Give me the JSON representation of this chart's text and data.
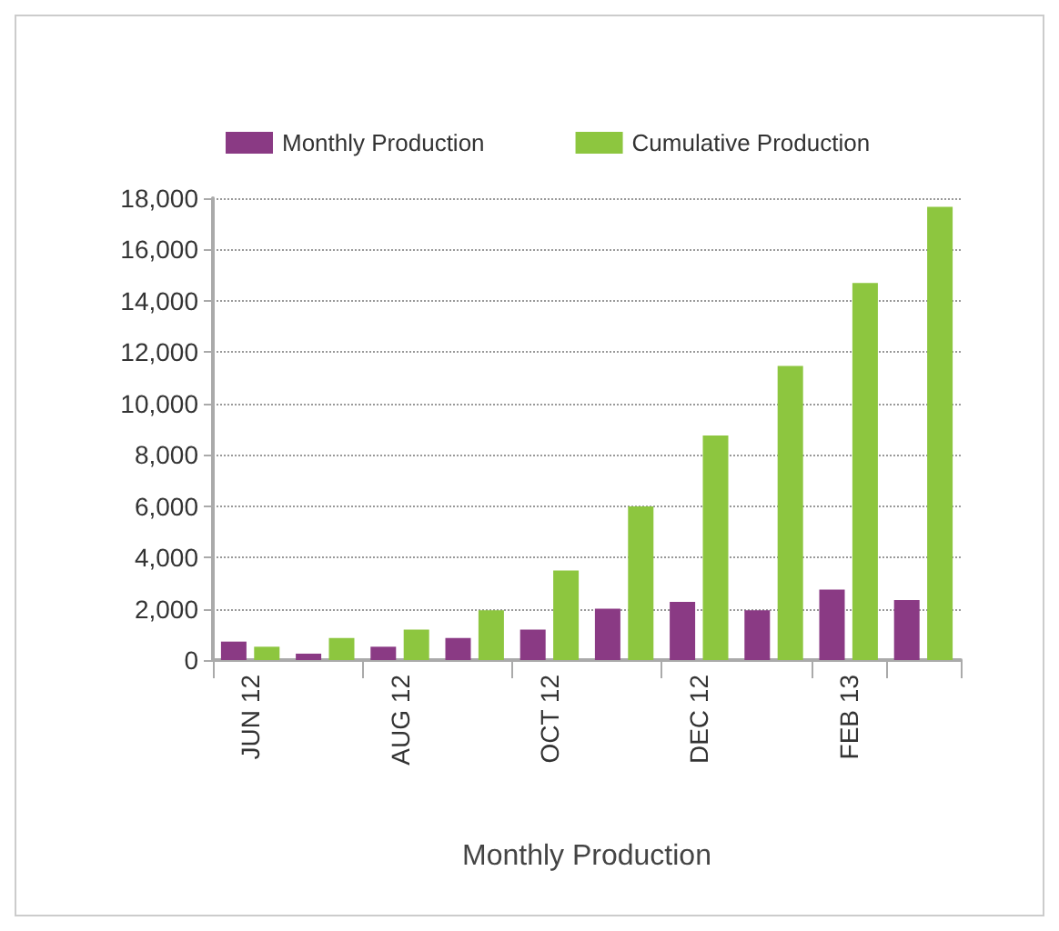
{
  "chart_data": {
    "type": "bar",
    "xlabel": "Monthly Production",
    "categories": [
      "JUN 12",
      null,
      "AUG 12",
      null,
      "OCT 12",
      null,
      "DEC 12",
      null,
      "FEB 13",
      null
    ],
    "series": [
      {
        "name": "Monthly Production",
        "color": "#8a3a84",
        "values": [
          720,
          250,
          520,
          860,
          1190,
          2000,
          2270,
          1940,
          2750,
          2340
        ]
      },
      {
        "name": "Cumulative Production",
        "color": "#8dc63f",
        "values": [
          520,
          860,
          1190,
          1940,
          3490,
          5990,
          8750,
          11460,
          14700,
          17660
        ]
      }
    ],
    "ylim": [
      0,
      18000
    ],
    "yticks": [
      0,
      {
        "value": 2000,
        "label": "2,000"
      },
      {
        "value": 4000,
        "label": "4,000"
      },
      {
        "value": 6000,
        "label": "6,000"
      },
      {
        "value": 8000,
        "label": "8,000"
      },
      {
        "value": 10000,
        "label": "10,000"
      },
      {
        "value": 12000,
        "label": "12,000"
      },
      {
        "value": 14000,
        "label": "14,000"
      },
      {
        "value": 16000,
        "label": "16,000"
      },
      {
        "value": 18000,
        "label": "18,000"
      }
    ],
    "grid": "y",
    "legend": "top left"
  }
}
